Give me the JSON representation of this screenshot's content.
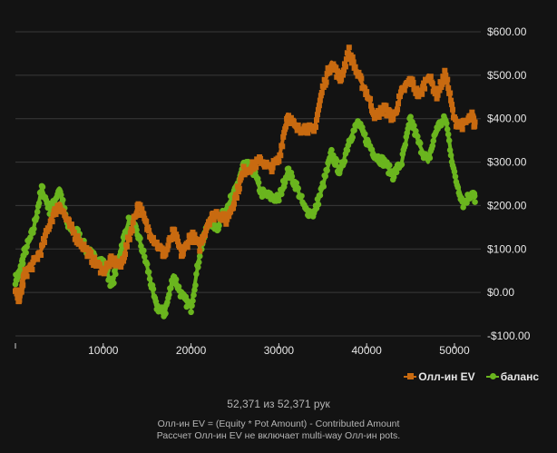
{
  "chart_data": {
    "type": "line",
    "xlabel": "",
    "ylabel": "",
    "xlim": [
      0,
      53000
    ],
    "ylim": [
      -100,
      600
    ],
    "x_ticks": [
      {
        "value": 0,
        "label": ""
      },
      {
        "value": 10000,
        "label": "10000"
      },
      {
        "value": 20000,
        "label": "20000"
      },
      {
        "value": 30000,
        "label": "30000"
      },
      {
        "value": 40000,
        "label": "40000"
      },
      {
        "value": 50000,
        "label": "50000"
      }
    ],
    "y_ticks": [
      {
        "value": -100,
        "label": "-$100.00"
      },
      {
        "value": 0,
        "label": "$0.00"
      },
      {
        "value": 100,
        "label": "$100.00"
      },
      {
        "value": 200,
        "label": "$200.00"
      },
      {
        "value": 300,
        "label": "$300.00"
      },
      {
        "value": 400,
        "label": "$400.00"
      },
      {
        "value": 500,
        "label": "$500.00"
      },
      {
        "value": 600,
        "label": "$600.00"
      }
    ],
    "grid": true,
    "legend_position": "bottom-right",
    "series": [
      {
        "name": "Олл-ин EV",
        "color": "#c86a10",
        "marker": "square",
        "points": [
          [
            0,
            0
          ],
          [
            500,
            -15
          ],
          [
            1000,
            40
          ],
          [
            2000,
            65
          ],
          [
            3000,
            100
          ],
          [
            4000,
            165
          ],
          [
            5000,
            205
          ],
          [
            6000,
            160
          ],
          [
            7000,
            125
          ],
          [
            8000,
            100
          ],
          [
            9000,
            70
          ],
          [
            10000,
            50
          ],
          [
            11000,
            75
          ],
          [
            12000,
            60
          ],
          [
            13000,
            130
          ],
          [
            14000,
            205
          ],
          [
            15000,
            150
          ],
          [
            16000,
            115
          ],
          [
            17000,
            85
          ],
          [
            18000,
            140
          ],
          [
            19000,
            85
          ],
          [
            20000,
            135
          ],
          [
            21000,
            105
          ],
          [
            22000,
            165
          ],
          [
            23000,
            185
          ],
          [
            24000,
            165
          ],
          [
            25000,
            215
          ],
          [
            26000,
            280
          ],
          [
            27000,
            290
          ],
          [
            28000,
            305
          ],
          [
            29000,
            285
          ],
          [
            30000,
            305
          ],
          [
            31000,
            410
          ],
          [
            32000,
            375
          ],
          [
            33000,
            380
          ],
          [
            34000,
            370
          ],
          [
            35000,
            470
          ],
          [
            36000,
            530
          ],
          [
            37000,
            490
          ],
          [
            38000,
            555
          ],
          [
            39000,
            500
          ],
          [
            40000,
            460
          ],
          [
            41000,
            405
          ],
          [
            42000,
            425
          ],
          [
            43000,
            400
          ],
          [
            44000,
            460
          ],
          [
            45000,
            490
          ],
          [
            46000,
            450
          ],
          [
            47000,
            500
          ],
          [
            48000,
            455
          ],
          [
            49000,
            505
          ],
          [
            50000,
            395
          ],
          [
            51000,
            385
          ],
          [
            52000,
            405
          ],
          [
            52371,
            380
          ]
        ]
      },
      {
        "name": "баланс",
        "color": "#6ab51e",
        "marker": "circle",
        "points": [
          [
            0,
            30
          ],
          [
            500,
            45
          ],
          [
            1000,
            90
          ],
          [
            2000,
            140
          ],
          [
            3000,
            240
          ],
          [
            4000,
            185
          ],
          [
            5000,
            240
          ],
          [
            6000,
            150
          ],
          [
            7000,
            140
          ],
          [
            8000,
            100
          ],
          [
            9000,
            80
          ],
          [
            10000,
            70
          ],
          [
            11000,
            15
          ],
          [
            12000,
            100
          ],
          [
            13000,
            170
          ],
          [
            14000,
            130
          ],
          [
            15000,
            60
          ],
          [
            16000,
            -30
          ],
          [
            17000,
            -50
          ],
          [
            18000,
            40
          ],
          [
            19000,
            -10
          ],
          [
            20000,
            -35
          ],
          [
            21000,
            90
          ],
          [
            22000,
            165
          ],
          [
            23000,
            150
          ],
          [
            24000,
            195
          ],
          [
            25000,
            230
          ],
          [
            26000,
            295
          ],
          [
            27000,
            285
          ],
          [
            28000,
            230
          ],
          [
            29000,
            220
          ],
          [
            30000,
            215
          ],
          [
            31000,
            280
          ],
          [
            32000,
            245
          ],
          [
            33000,
            190
          ],
          [
            34000,
            180
          ],
          [
            35000,
            245
          ],
          [
            36000,
            320
          ],
          [
            37000,
            275
          ],
          [
            38000,
            350
          ],
          [
            39000,
            390
          ],
          [
            40000,
            350
          ],
          [
            41000,
            315
          ],
          [
            42000,
            300
          ],
          [
            43000,
            270
          ],
          [
            44000,
            300
          ],
          [
            45000,
            400
          ],
          [
            46000,
            340
          ],
          [
            47000,
            300
          ],
          [
            48000,
            380
          ],
          [
            49000,
            400
          ],
          [
            50000,
            270
          ],
          [
            51000,
            205
          ],
          [
            52000,
            230
          ],
          [
            52371,
            215
          ]
        ]
      }
    ]
  },
  "summary": {
    "hand_count": "52,371 из 52,371 рук",
    "footnote_line1": "Олл-ин EV = (Equity * Pot Amount) - Contributed Amount",
    "footnote_line2": "Рассчет Олл-ин EV не включает multi-way Олл-ин pots."
  }
}
